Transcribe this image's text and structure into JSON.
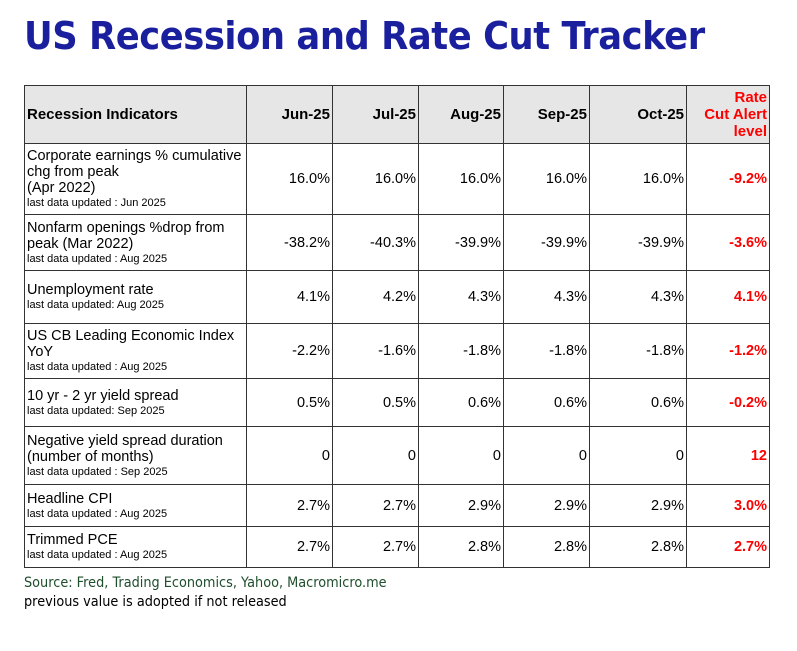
{
  "title": "US Recession and Rate Cut Tracker",
  "colors": {
    "title": "#1a1f9e",
    "alert": "#ff0000",
    "header_bg": "#e6e6e6",
    "source_text": "#1f4e2c"
  },
  "table": {
    "headers": {
      "indicator": "Recession Indicators",
      "months": [
        "Jun-25",
        "Jul-25",
        "Aug-25",
        "Sep-25",
        "Oct-25"
      ],
      "alert_lines": [
        "Rate",
        "Cut Alert",
        "level"
      ]
    },
    "rows": [
      {
        "name_lines": [
          "Corporate earnings % cumulative",
          "chg from peak",
          "(Apr 2022)"
        ],
        "updated": "last data updated : Jun 2025",
        "values": [
          "16.0%",
          "16.0%",
          "16.0%",
          "16.0%",
          "16.0%"
        ],
        "alert": "-9.2%"
      },
      {
        "name_lines": [
          "Nonfarm openings %drop from",
          "peak (Mar 2022)"
        ],
        "updated": "last data updated : Aug 2025",
        "values": [
          "-38.2%",
          "-40.3%",
          "-39.9%",
          "-39.9%",
          "-39.9%"
        ],
        "alert": "-3.6%"
      },
      {
        "name_lines": [
          "Unemployment rate"
        ],
        "updated": "last data updated: Aug 2025",
        "values": [
          "4.1%",
          "4.2%",
          "4.3%",
          "4.3%",
          "4.3%"
        ],
        "alert": "4.1%"
      },
      {
        "name_lines": [
          "US CB Leading Economic Index",
          "YoY"
        ],
        "updated": "last data updated : Aug 2025",
        "values": [
          "-2.2%",
          "-1.6%",
          "-1.8%",
          "-1.8%",
          "-1.8%"
        ],
        "alert": "-1.2%"
      },
      {
        "name_lines": [
          "10 yr - 2 yr yield spread"
        ],
        "updated": "last data updated: Sep 2025",
        "values": [
          "0.5%",
          "0.5%",
          "0.6%",
          "0.6%",
          "0.6%"
        ],
        "alert": "-0.2%"
      },
      {
        "name_lines": [
          "Negative yield spread duration",
          "(number of  months)"
        ],
        "updated": "last data updated : Sep 2025",
        "values": [
          "0",
          "0",
          "0",
          "0",
          "0"
        ],
        "alert": "12"
      },
      {
        "name_lines": [
          "Headline CPI"
        ],
        "updated": "last data updated : Aug 2025",
        "values": [
          "2.7%",
          "2.7%",
          "2.9%",
          "2.9%",
          "2.9%"
        ],
        "alert": "3.0%"
      },
      {
        "name_lines": [
          "Trimmed PCE"
        ],
        "updated": "last data updated : Aug 2025",
        "values": [
          "2.7%",
          "2.7%",
          "2.8%",
          "2.8%",
          "2.8%"
        ],
        "alert": "2.7%"
      }
    ]
  },
  "footer": {
    "source": "Source: Fred, Trading Economics, Yahoo, Macromicro.me",
    "note": "previous value is adopted if not released"
  }
}
